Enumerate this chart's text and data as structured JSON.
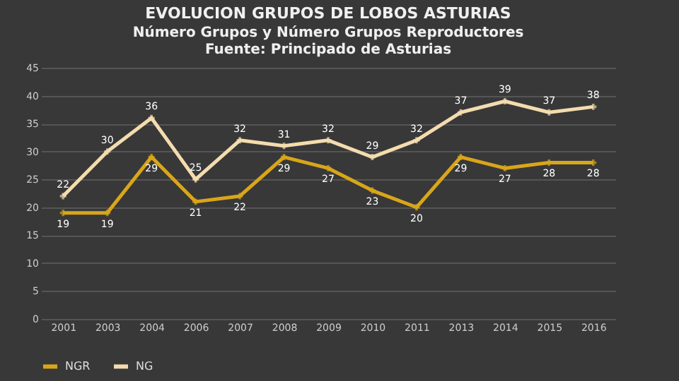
{
  "chart_data": {
    "type": "line",
    "title": "EVOLUCION GRUPOS DE LOBOS ASTURIAS",
    "subtitle": "Número Grupos y Número Grupos Reproductores\nFuente: Principado de Asturias",
    "categories": [
      "2001",
      "2003",
      "2004",
      "2006",
      "2007",
      "2008",
      "2009",
      "2010",
      "2011",
      "2013",
      "2014",
      "2015",
      "2016"
    ],
    "series": [
      {
        "name": "NGR",
        "color": "#d9a61a",
        "values": [
          19,
          19,
          29,
          21,
          22,
          29,
          27,
          23,
          20,
          29,
          27,
          28,
          28
        ]
      },
      {
        "name": "NG",
        "color": "#f3dcae",
        "values": [
          22,
          30,
          36,
          25,
          32,
          31,
          32,
          29,
          32,
          37,
          39,
          37,
          38
        ]
      }
    ],
    "ylim": [
      0,
      45
    ],
    "yticks": [
      0,
      5,
      10,
      15,
      20,
      25,
      30,
      35,
      40,
      45
    ],
    "grid": "y",
    "legend": "bottom",
    "marker": "cross",
    "data_labels": true,
    "line_style": "solid"
  }
}
